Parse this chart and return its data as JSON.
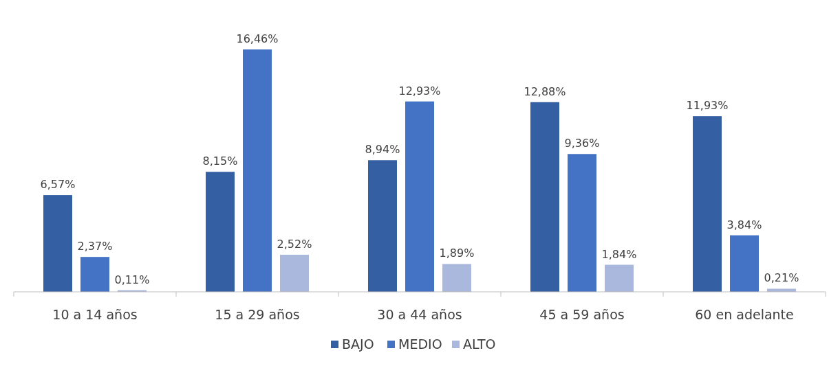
{
  "chart_data": {
    "type": "bar",
    "categories": [
      "10 a 14 años",
      "15 a 29 años",
      "30 a 44 años",
      "45 a 59 años",
      "60 en adelante"
    ],
    "series": [
      {
        "name": "BAJO",
        "color": "#355fa3",
        "values": [
          6.57,
          8.15,
          8.94,
          12.88,
          11.93
        ],
        "value_labels": [
          "6,57%",
          "8,15%",
          "8,94%",
          "12,88%",
          "11,93%"
        ]
      },
      {
        "name": "MEDIO",
        "color": "#4472c4",
        "values": [
          2.37,
          16.46,
          12.93,
          9.36,
          3.84
        ],
        "value_labels": [
          "2,37%",
          "16,46%",
          "12,93%",
          "9,36%",
          "3,84%"
        ]
      },
      {
        "name": "ALTO",
        "color": "#a9b8dc",
        "values": [
          0.11,
          2.52,
          1.89,
          1.84,
          0.21
        ],
        "value_labels": [
          "0,11%",
          "2,52%",
          "1,89%",
          "1,84%",
          "0,21%"
        ]
      }
    ],
    "legend": "bottom"
  }
}
